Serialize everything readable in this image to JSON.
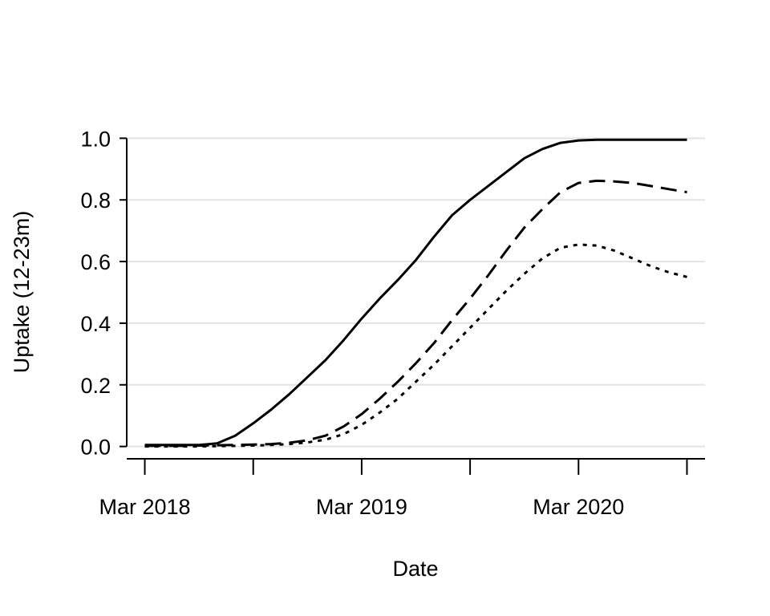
{
  "chart_data": {
    "type": "line",
    "title": "",
    "xlabel": "Date",
    "ylabel": "Uptake (12-23m)",
    "x_ticks": [
      "2018-03",
      "2018-09",
      "2019-03",
      "2019-09",
      "2020-03",
      "2020-09"
    ],
    "x_tick_labels": [
      "Mar 2018",
      "",
      "Mar 2019",
      "",
      "Mar 2020",
      ""
    ],
    "y_ticks": [
      0.0,
      0.2,
      0.4,
      0.6,
      0.8,
      1.0
    ],
    "y_tick_labels": [
      "0.0",
      "0.2",
      "0.4",
      "0.6",
      "0.8",
      "1.0"
    ],
    "xlim": [
      "2018-02",
      "2020-10"
    ],
    "ylim": [
      -0.04,
      1.04
    ],
    "grid": "horizontal",
    "series": [
      {
        "style": "solid",
        "color": "#000000",
        "x": [
          "2018-03",
          "2018-04",
          "2018-05",
          "2018-06",
          "2018-07",
          "2018-08",
          "2018-09",
          "2018-10",
          "2018-11",
          "2018-12",
          "2019-01",
          "2019-02",
          "2019-03",
          "2019-04",
          "2019-05",
          "2019-06",
          "2019-07",
          "2019-08",
          "2019-09",
          "2019-10",
          "2019-11",
          "2019-12",
          "2020-01",
          "2020-02",
          "2020-03",
          "2020-04",
          "2020-05",
          "2020-06",
          "2020-07",
          "2020-08",
          "2020-09"
        ],
        "values": [
          0.005,
          0.005,
          0.005,
          0.005,
          0.01,
          0.035,
          0.075,
          0.12,
          0.17,
          0.225,
          0.28,
          0.345,
          0.415,
          0.48,
          0.54,
          0.605,
          0.68,
          0.75,
          0.8,
          0.845,
          0.89,
          0.935,
          0.965,
          0.985,
          0.993,
          0.995,
          0.995,
          0.995,
          0.995,
          0.995,
          0.995
        ]
      },
      {
        "style": "dashed",
        "color": "#000000",
        "x": [
          "2018-03",
          "2018-04",
          "2018-05",
          "2018-06",
          "2018-07",
          "2018-08",
          "2018-09",
          "2018-10",
          "2018-11",
          "2018-12",
          "2019-01",
          "2019-02",
          "2019-03",
          "2019-04",
          "2019-05",
          "2019-06",
          "2019-07",
          "2019-08",
          "2019-09",
          "2019-10",
          "2019-11",
          "2019-12",
          "2020-01",
          "2020-02",
          "2020-03",
          "2020-04",
          "2020-05",
          "2020-06",
          "2020-07",
          "2020-08",
          "2020-09"
        ],
        "values": [
          0.002,
          0.002,
          0.002,
          0.003,
          0.004,
          0.005,
          0.006,
          0.008,
          0.012,
          0.02,
          0.035,
          0.065,
          0.105,
          0.155,
          0.21,
          0.27,
          0.335,
          0.41,
          0.48,
          0.555,
          0.635,
          0.71,
          0.77,
          0.825,
          0.855,
          0.862,
          0.86,
          0.855,
          0.845,
          0.835,
          0.825
        ]
      },
      {
        "style": "dotted",
        "color": "#000000",
        "x": [
          "2018-03",
          "2018-04",
          "2018-05",
          "2018-06",
          "2018-07",
          "2018-08",
          "2018-09",
          "2018-10",
          "2018-11",
          "2018-12",
          "2019-01",
          "2019-02",
          "2019-03",
          "2019-04",
          "2019-05",
          "2019-06",
          "2019-07",
          "2019-08",
          "2019-09",
          "2019-10",
          "2019-11",
          "2019-12",
          "2020-01",
          "2020-02",
          "2020-03",
          "2020-04",
          "2020-05",
          "2020-06",
          "2020-07",
          "2020-08",
          "2020-09"
        ],
        "values": [
          0.0,
          0.0,
          0.0,
          0.0,
          0.001,
          0.002,
          0.003,
          0.005,
          0.008,
          0.013,
          0.022,
          0.04,
          0.07,
          0.11,
          0.155,
          0.21,
          0.265,
          0.325,
          0.385,
          0.445,
          0.505,
          0.56,
          0.61,
          0.645,
          0.655,
          0.652,
          0.635,
          0.61,
          0.585,
          0.565,
          0.55
        ]
      }
    ]
  }
}
